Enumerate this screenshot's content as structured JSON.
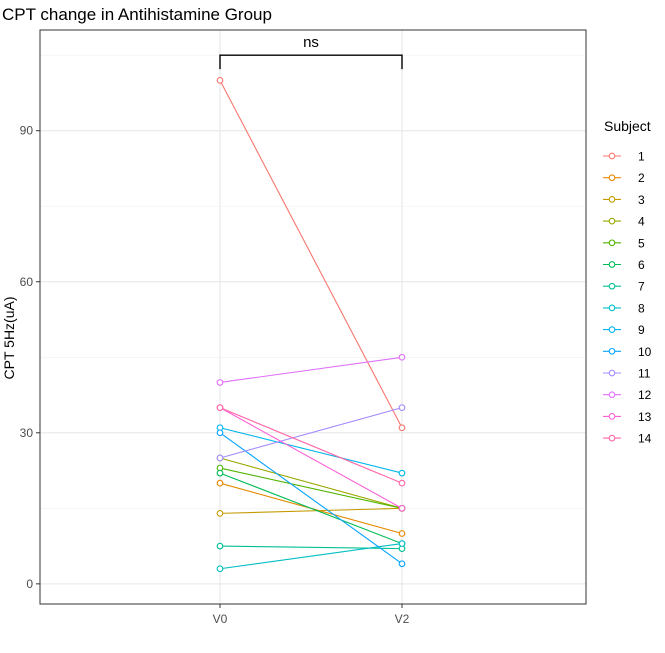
{
  "chart_data": {
    "type": "line",
    "title": "CPT change in Antihistamine Group",
    "xlabel": "",
    "ylabel": "CPT 5Hz(uA)",
    "categories": [
      "V0",
      "V2"
    ],
    "ylim": [
      -4,
      110
    ],
    "yticks": [
      0,
      30,
      60,
      90
    ],
    "grid": true,
    "legend_title": "Subject",
    "legend_position": "right",
    "significance": {
      "from": "V0",
      "to": "V2",
      "at": 105,
      "label": "ns"
    },
    "series": [
      {
        "name": "1",
        "color": "#F8766D",
        "values": [
          100,
          31
        ]
      },
      {
        "name": "2",
        "color": "#E38900",
        "values": [
          20,
          10
        ]
      },
      {
        "name": "3",
        "color": "#C49A00",
        "values": [
          14,
          15
        ]
      },
      {
        "name": "4",
        "color": "#99A800",
        "values": [
          25,
          15
        ]
      },
      {
        "name": "5",
        "color": "#53B400",
        "values": [
          23,
          15
        ]
      },
      {
        "name": "6",
        "color": "#00BC56",
        "values": [
          22,
          8
        ]
      },
      {
        "name": "7",
        "color": "#00C094",
        "values": [
          7.5,
          7
        ]
      },
      {
        "name": "8",
        "color": "#00BFC4",
        "values": [
          3,
          8
        ]
      },
      {
        "name": "9",
        "color": "#00B6EB",
        "values": [
          31,
          22
        ]
      },
      {
        "name": "10",
        "color": "#06A4FF",
        "values": [
          30,
          4
        ]
      },
      {
        "name": "11",
        "color": "#A58AFF",
        "values": [
          25,
          35
        ]
      },
      {
        "name": "12",
        "color": "#DF70F8",
        "values": [
          40,
          45
        ]
      },
      {
        "name": "13",
        "color": "#FB61D7",
        "values": [
          35,
          15
        ]
      },
      {
        "name": "14",
        "color": "#FF66A8",
        "values": [
          35,
          20
        ]
      }
    ]
  }
}
